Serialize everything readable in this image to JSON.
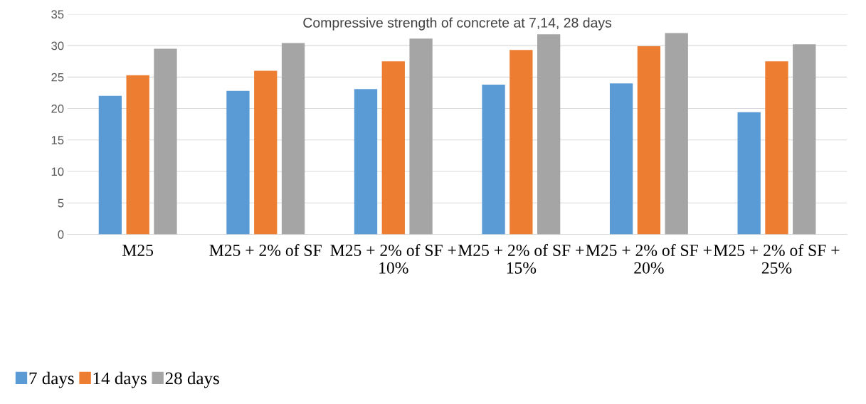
{
  "chart_data": {
    "type": "bar",
    "title": "Compressive strength of concrete at 7,14, 28 days",
    "categories": [
      "M25",
      "M25 + 2% of SF",
      "M25 + 2% of SF +\n10%",
      "M25 + 2% of SF +\n15%",
      "M25 + 2% of SF +\n20%",
      "M25 + 2% of SF +\n25%"
    ],
    "series": [
      {
        "name": "7 days",
        "color": "#5b9bd5",
        "values": [
          22.0,
          22.8,
          23.1,
          23.8,
          24.0,
          19.4
        ]
      },
      {
        "name": "14 days",
        "color": "#ed7d31",
        "values": [
          25.3,
          26.0,
          27.5,
          29.3,
          29.9,
          27.5
        ]
      },
      {
        "name": "28 days",
        "color": "#a5a5a5",
        "values": [
          29.5,
          30.4,
          31.1,
          31.8,
          32.0,
          30.2
        ]
      }
    ],
    "ylim": [
      0,
      35
    ],
    "yticks": [
      0,
      5,
      10,
      15,
      20,
      25,
      30,
      35
    ],
    "grid": "y",
    "legend": "bottom left"
  }
}
